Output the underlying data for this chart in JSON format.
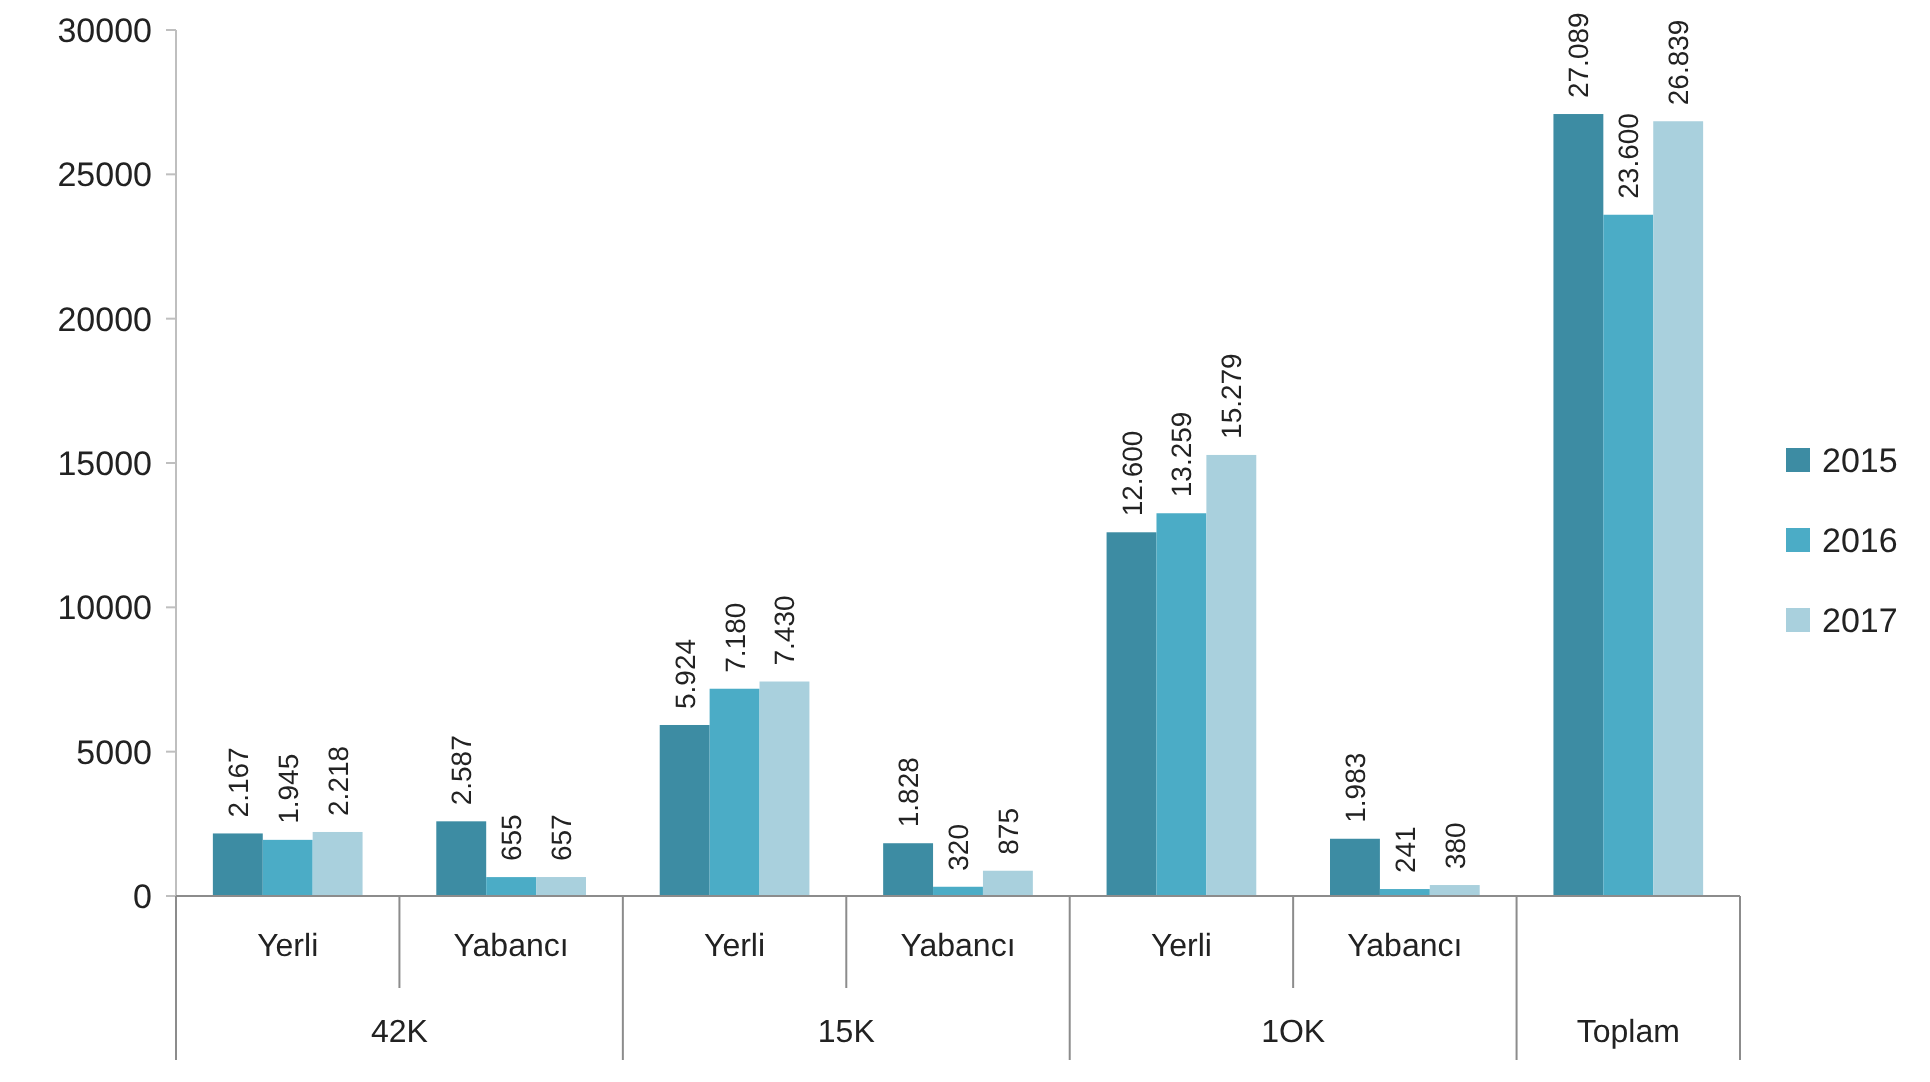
{
  "chart_data": {
    "type": "bar",
    "categories": [
      "Yerli",
      "Yabancı",
      "Yerli",
      "Yabancı",
      "Yerli",
      "Yabancı",
      null
    ],
    "series": [
      {
        "name": "2015",
        "color": "#3d8ca3",
        "values": [
          2167,
          2587,
          5924,
          1828,
          12600,
          1983,
          27089
        ],
        "value_labels": [
          "2.167",
          "2.587",
          "5.924",
          "1.828",
          "12.600",
          "1.983",
          "27.089"
        ]
      },
      {
        "name": "2016",
        "color": "#4bacc6",
        "values": [
          1945,
          655,
          7180,
          320,
          13259,
          241,
          23600
        ],
        "value_labels": [
          "1.945",
          "655",
          "7.180",
          "320",
          "13.259",
          "241",
          "23.600"
        ]
      },
      {
        "name": "2017",
        "color": "#a9d0dd",
        "values": [
          2218,
          657,
          7430,
          875,
          15279,
          380,
          26839
        ],
        "value_labels": [
          "2.218",
          "657",
          "7.430",
          "875",
          "15.279",
          "380",
          "26.839"
        ]
      }
    ],
    "annotations": [
      "42K",
      "15K",
      "1OK",
      "Toplam"
    ],
    "ylim": [
      0,
      30000
    ],
    "yticks": [
      0,
      5000,
      10000,
      15000,
      20000,
      25000,
      30000
    ],
    "grid": false,
    "legend": "right"
  }
}
